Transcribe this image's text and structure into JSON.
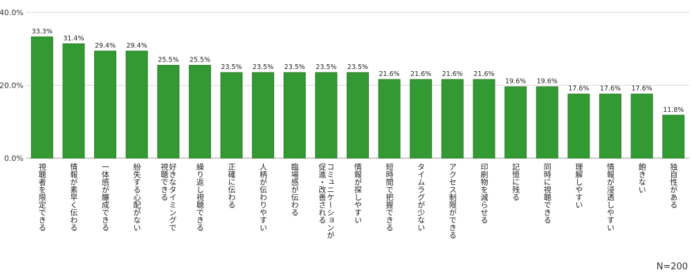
{
  "chart_data": {
    "type": "bar",
    "categories": [
      "視聴者を限定できる",
      "情報が素早く伝わる",
      "一体感が醸成できる",
      "紛失する心配がない",
      "好きなタイミングで視聴できる",
      "繰り返し視聴できる",
      "正確に伝わる",
      "人柄が伝わりやすい",
      "臨場感が伝わる",
      "コミュニケーションが促進・改善される",
      "情報が探しやすい",
      "短時間で把握できる",
      "タイムラグが少ない",
      "アクセス制限ができる",
      "印刷物を減らせる",
      "記憶に残る",
      "同時に視聴できる",
      "理解しやすい",
      "情報が浸透しやすい",
      "飽きない",
      "独自性がある"
    ],
    "category_lines": [
      [
        "視聴者を限定できる"
      ],
      [
        "情報が素早く伝わる"
      ],
      [
        "一体感が醸成できる"
      ],
      [
        "紛失する心配がない"
      ],
      [
        "好きなタイミングで",
        "視聴できる"
      ],
      [
        "繰り返し視聴できる"
      ],
      [
        "正確に伝わる"
      ],
      [
        "人柄が伝わりやすい"
      ],
      [
        "臨場感が伝わる"
      ],
      [
        "コミュニケーションが",
        "促進・改善される"
      ],
      [
        "情報が探しやすい"
      ],
      [
        "短時間で把握できる"
      ],
      [
        "タイムラグが少ない"
      ],
      [
        "アクセス制限ができる"
      ],
      [
        "印刷物を減らせる"
      ],
      [
        "記憶に残る"
      ],
      [
        "同時に視聴できる"
      ],
      [
        "理解しやすい"
      ],
      [
        "情報が浸透しやすい"
      ],
      [
        "飽きない"
      ],
      [
        "独自性がある"
      ]
    ],
    "values": [
      33.3,
      31.4,
      29.4,
      29.4,
      25.5,
      25.5,
      23.5,
      23.5,
      23.5,
      23.5,
      23.5,
      21.6,
      21.6,
      21.6,
      21.6,
      19.6,
      19.6,
      17.6,
      17.6,
      17.6,
      11.8
    ],
    "value_labels": [
      "33.3%",
      "31.4%",
      "29.4%",
      "29.4%",
      "25.5%",
      "25.5%",
      "23.5%",
      "23.5%",
      "23.5%",
      "23.5%",
      "23.5%",
      "21.6%",
      "21.6%",
      "21.6%",
      "21.6%",
      "19.6%",
      "19.6%",
      "17.6%",
      "17.6%",
      "17.6%",
      "11.8%"
    ],
    "yticks": [
      "0.0%",
      "20.0%",
      "40.0%"
    ],
    "ytick_values": [
      0,
      20,
      40
    ],
    "ylim": [
      0,
      40
    ],
    "grid": true,
    "title": "",
    "xlabel": "",
    "ylabel": "",
    "colors": {
      "bar_fill": "#339933",
      "bar_stroke": "#2a7f2a",
      "grid": "#d9d9d9",
      "axis": "#999999"
    }
  },
  "note": "N=200"
}
